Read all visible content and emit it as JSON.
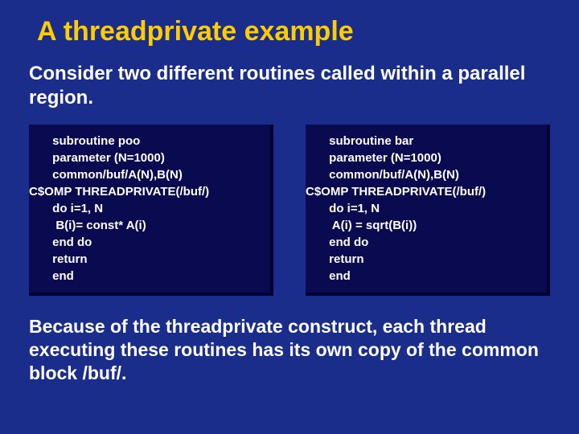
{
  "title": "A threadprivate example",
  "subtitle": "Consider two different routines called within a parallel region.",
  "leftCode": {
    "l1": "       subroutine poo",
    "l2": "       parameter (N=1000)",
    "l3": "       common/buf/A(N),B(N)",
    "l4": "C$OMP THREADPRIVATE(/buf/)",
    "l5": "       do i=1, N",
    "l6": "        B(i)= const* A(i)",
    "l7": "       end do",
    "l8": "       return",
    "l9": "       end"
  },
  "rightCode": {
    "l1": "       subroutine bar",
    "l2": "       parameter (N=1000)",
    "l3": "       common/buf/A(N),B(N)",
    "l4": "C$OMP THREADPRIVATE(/buf/)",
    "l5": "       do i=1, N",
    "l6": "        A(i) = sqrt(B(i))",
    "l7": "       end do",
    "l8": "       return",
    "l9": "       end"
  },
  "footer": "Because of the threadprivate construct, each thread executing these routines has its own copy of the common block /buf/.",
  "colors": {
    "background": "#1a2d8a",
    "title": "#ffcc00",
    "codeBoxBg": "#0a0a50",
    "codeBoxShadow": "#000033",
    "text": "#ffffff"
  }
}
